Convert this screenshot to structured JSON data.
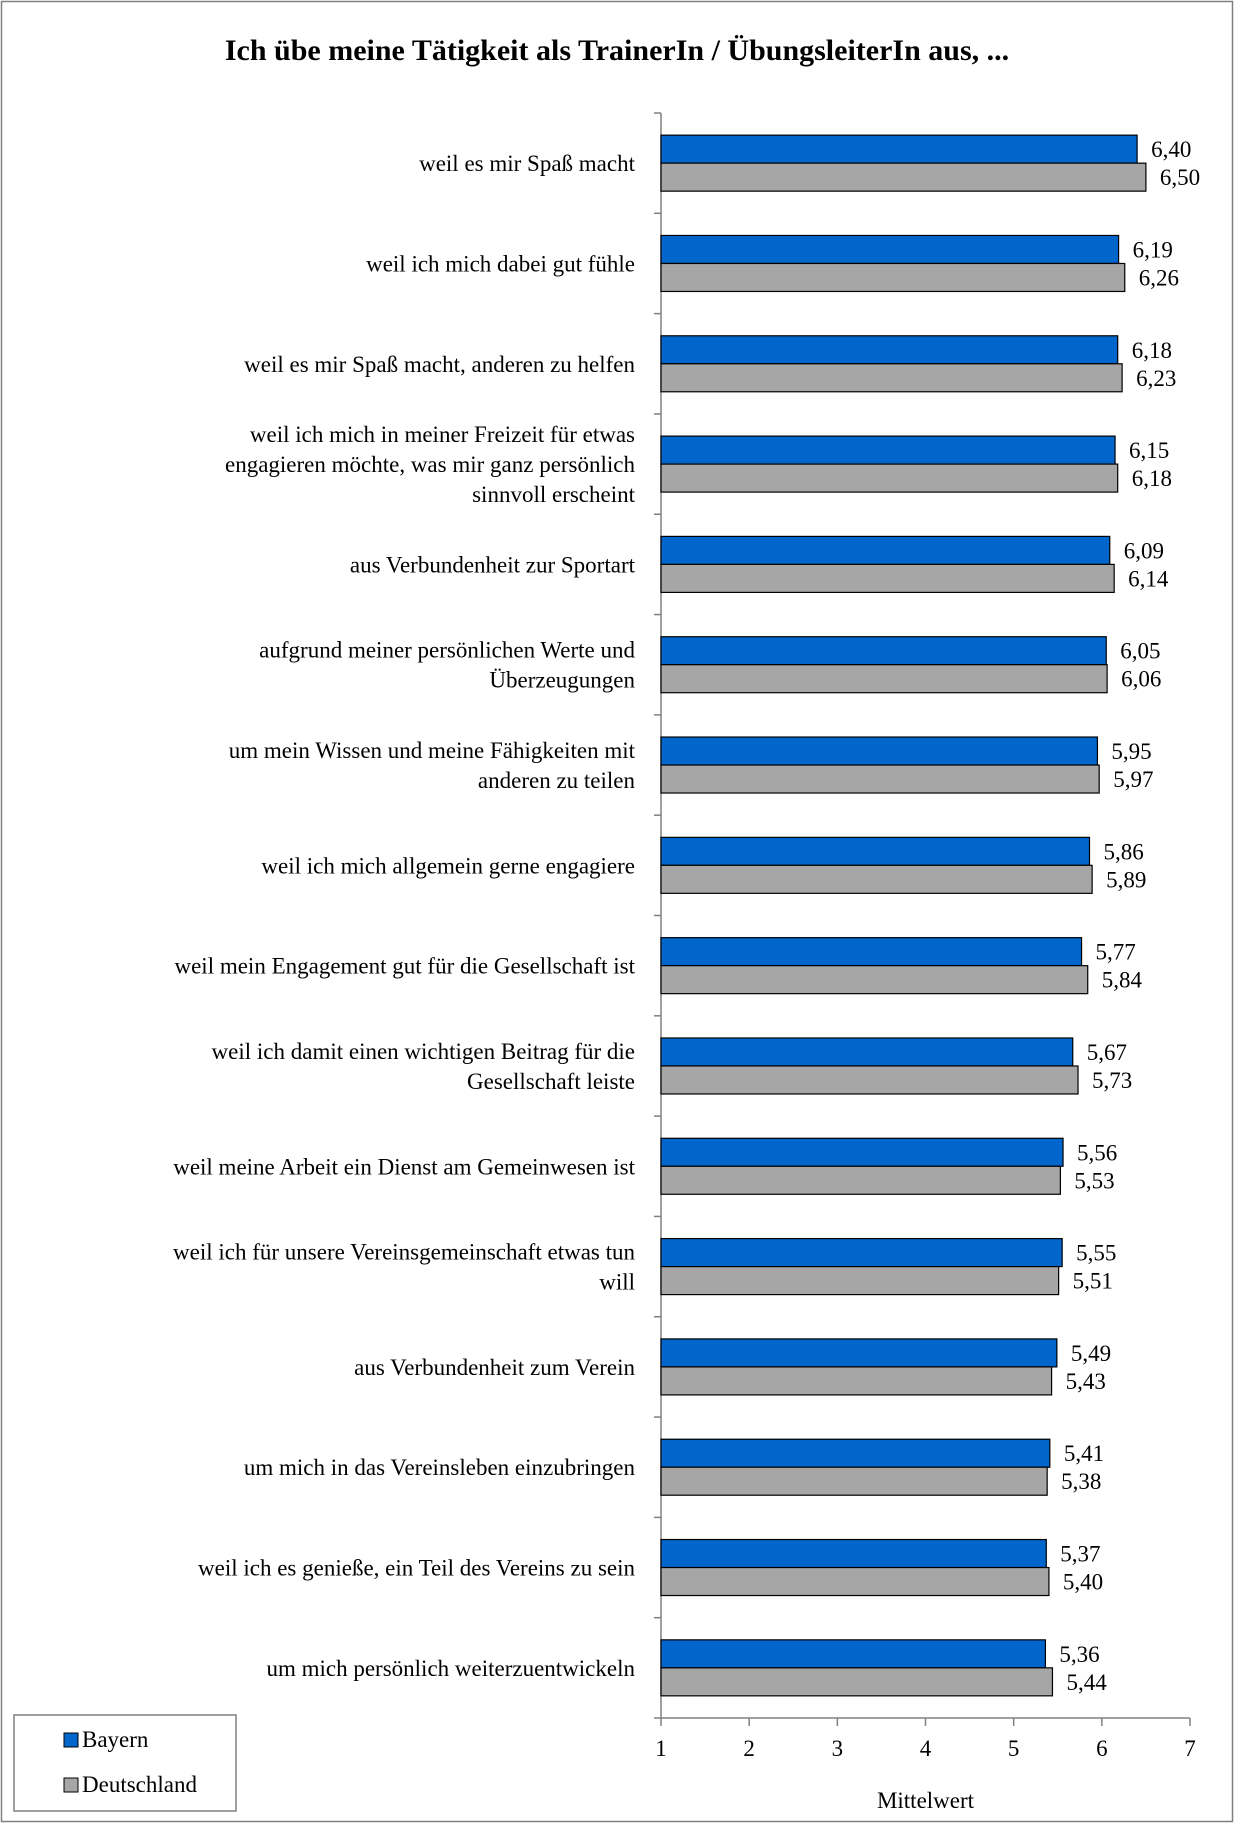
{
  "chart_data": {
    "type": "bar",
    "orientation": "horizontal",
    "title": "Ich übe meine Tätigkeit als TrainerIn / ÜbungsleiterIn aus, ...",
    "xlabel": "Mittelwert",
    "ylabel": "",
    "xlim": [
      1,
      7
    ],
    "x_ticks": [
      "1",
      "2",
      "3",
      "4",
      "5",
      "6",
      "7"
    ],
    "grid": false,
    "legend_position": "bottom-left",
    "categories": [
      [
        "weil es mir Spaß macht"
      ],
      [
        "weil ich mich dabei gut fühle"
      ],
      [
        "weil es mir Spaß macht, anderen zu helfen"
      ],
      [
        "weil ich mich in meiner Freizeit für etwas",
        "engagieren möchte, was mir ganz persönlich",
        "sinnvoll erscheint"
      ],
      [
        "aus Verbundenheit zur Sportart"
      ],
      [
        "aufgrund meiner persönlichen Werte und",
        "Überzeugungen"
      ],
      [
        "um mein Wissen und meine Fähigkeiten mit",
        "anderen zu teilen"
      ],
      [
        "weil ich mich allgemein gerne engagiere"
      ],
      [
        "weil mein Engagement gut für die Gesellschaft ist"
      ],
      [
        "weil ich damit einen wichtigen Beitrag für die",
        "Gesellschaft leiste"
      ],
      [
        "weil meine Arbeit ein Dienst am Gemeinwesen ist"
      ],
      [
        "weil ich für unsere Vereinsgemeinschaft etwas tun",
        "will"
      ],
      [
        "aus Verbundenheit zum Verein"
      ],
      [
        "um mich in das Vereinsleben einzubringen"
      ],
      [
        "weil ich es genieße, ein Teil des Vereins zu sein"
      ],
      [
        "um mich persönlich weiterzuentwickeln"
      ]
    ],
    "series": [
      {
        "name": "Bayern",
        "color": "#0066cc",
        "values": [
          6.4,
          6.19,
          6.18,
          6.15,
          6.09,
          6.05,
          5.95,
          5.86,
          5.77,
          5.67,
          5.56,
          5.55,
          5.49,
          5.41,
          5.37,
          5.36
        ],
        "labels": [
          "6,40",
          "6,19",
          "6,18",
          "6,15",
          "6,09",
          "6,05",
          "5,95",
          "5,86",
          "5,77",
          "5,67",
          "5,56",
          "5,55",
          "5,49",
          "5,41",
          "5,37",
          "5,36"
        ]
      },
      {
        "name": "Deutschland",
        "color": "#a6a6a6",
        "values": [
          6.5,
          6.26,
          6.23,
          6.18,
          6.14,
          6.06,
          5.97,
          5.89,
          5.84,
          5.73,
          5.53,
          5.51,
          5.43,
          5.38,
          5.4,
          5.44
        ],
        "labels": [
          "6,50",
          "6,26",
          "6,23",
          "6,18",
          "6,14",
          "6,06",
          "5,97",
          "5,89",
          "5,84",
          "5,73",
          "5,53",
          "5,51",
          "5,43",
          "5,38",
          "5,40",
          "5,44"
        ]
      }
    ]
  }
}
